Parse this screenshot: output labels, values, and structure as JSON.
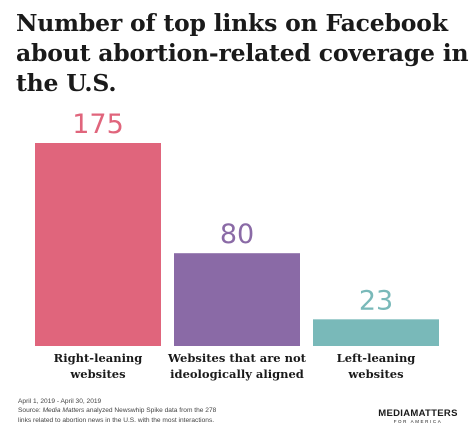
{
  "title_lines": [
    "Number of top links on Facebook",
    "about abortion-related coverage in",
    "the U.S."
  ],
  "chart_data": {
    "type": "bar",
    "title": "Number of top links on Facebook about abortion-related coverage in the U.S.",
    "categories": [
      [
        "Right-leaning",
        "websites"
      ],
      [
        "Websites that are not",
        "ideologically aligned"
      ],
      [
        "Left-leaning",
        "websites"
      ]
    ],
    "values": [
      175,
      80,
      23
    ],
    "value_labels": [
      "175",
      "80",
      "23"
    ],
    "colors": [
      "#e0657c",
      "#8a6aa6",
      "#79b9b9"
    ],
    "ylim": [
      0,
      175
    ],
    "grid": false,
    "legend": "none"
  },
  "footer": {
    "date_range": "April 1, 2019 - April 30, 2019",
    "source_prefix": "Source: ",
    "source_org": "Media Matters",
    "source_rest": " analyzed Newswhip Spike data from the 278",
    "source_line2": "links related to abortion news in the U.S. with the most interactions."
  },
  "logo": {
    "main": "MEDIAMATTERS",
    "sub": "FOR AMERICA"
  }
}
